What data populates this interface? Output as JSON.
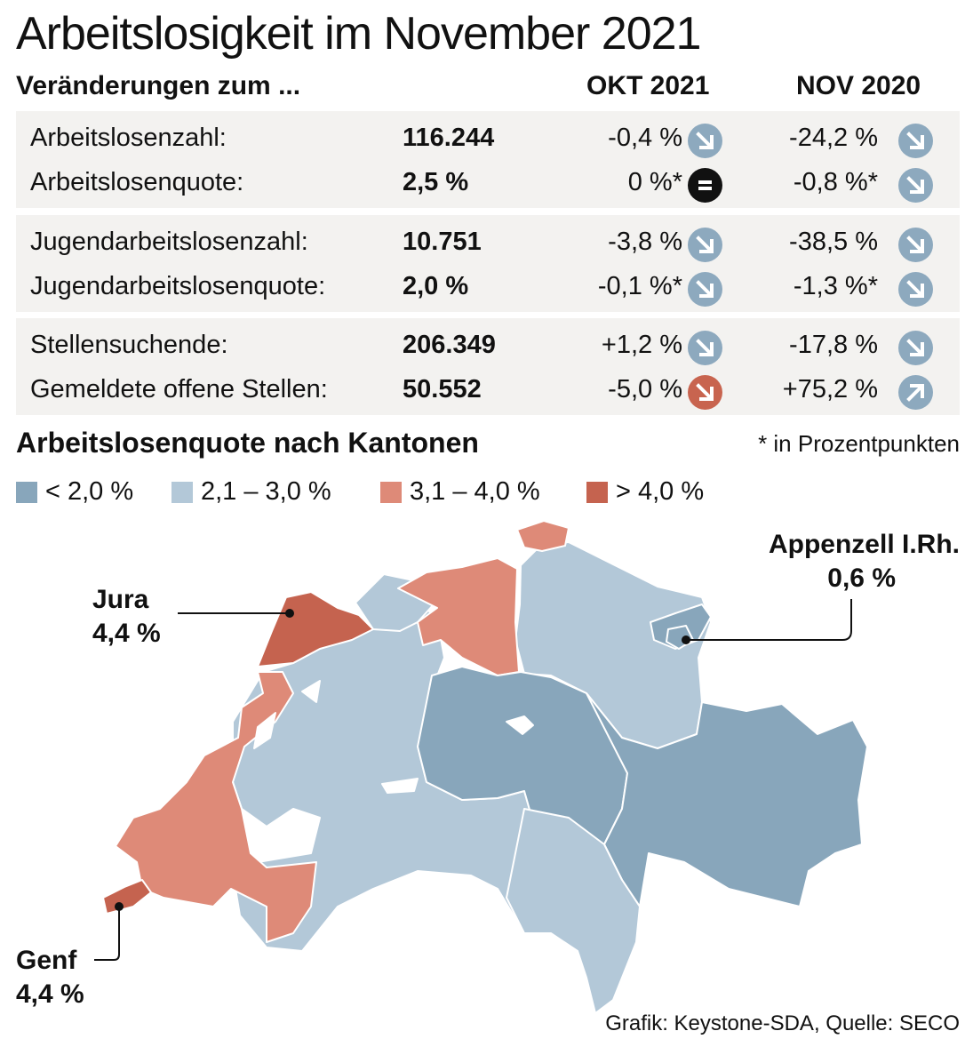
{
  "title": "Arbeitslosigkeit im November 2021",
  "table": {
    "caption": "Veränderungen zum ...",
    "col1_header": "OKT 2021",
    "col2_header": "NOV 2020",
    "groups": [
      {
        "rows": [
          {
            "label": "Arbeitslosenzahl:",
            "value": "116.244",
            "okt": "-0,4 %",
            "okt_icon": "arrow-down-right-icon",
            "okt_color": "#8da9be",
            "nov": "-24,2 %",
            "nov_icon": "arrow-down-right-icon",
            "nov_color": "#8da9be"
          },
          {
            "label": "Arbeitslosenquote:",
            "value": "2,5 %",
            "okt": "0 %*",
            "okt_icon": "equals-icon",
            "okt_color": "#111111",
            "nov": "-0,8 %*",
            "nov_icon": "arrow-down-right-icon",
            "nov_color": "#8da9be"
          }
        ]
      },
      {
        "rows": [
          {
            "label": "Jugendarbeitslosenzahl:",
            "value": "10.751",
            "okt": "-3,8 %",
            "okt_icon": "arrow-down-right-icon",
            "okt_color": "#8da9be",
            "nov": "-38,5 %",
            "nov_icon": "arrow-down-right-icon",
            "nov_color": "#8da9be"
          },
          {
            "label": "Jugendarbeitslosenquote:",
            "value": "2,0 %",
            "okt": "-0,1 %*",
            "okt_icon": "arrow-down-right-icon",
            "okt_color": "#8da9be",
            "nov": "-1,3 %*",
            "nov_icon": "arrow-down-right-icon",
            "nov_color": "#8da9be"
          }
        ]
      },
      {
        "rows": [
          {
            "label": "Stellensuchende:",
            "value": "206.349",
            "okt": "+1,2 %",
            "okt_icon": "arrow-down-right-icon",
            "okt_color": "#8da9be",
            "nov": "-17,8 %",
            "nov_icon": "arrow-down-right-icon",
            "nov_color": "#8da9be"
          },
          {
            "label": "Gemeldete offene Stellen:",
            "value": "50.552",
            "okt": "-5,0 %",
            "okt_icon": "arrow-down-right-icon",
            "okt_color": "#c8644f",
            "nov": "+75,2 %",
            "nov_icon": "arrow-up-right-icon",
            "nov_color": "#8da9be"
          }
        ]
      }
    ]
  },
  "map_section": {
    "title": "Arbeitslosenquote nach Kantonen",
    "footnote": "* in Prozentpunkten",
    "legend": [
      {
        "label": "< 2,0 %",
        "color": "#88a6bb"
      },
      {
        "label": "2,1 – 3,0 %",
        "color": "#b3c8d8"
      },
      {
        "label": "3,1 – 4,0 %",
        "color": "#de8a78"
      },
      {
        "label": "> 4,0 %",
        "color": "#c5634f"
      }
    ],
    "callouts": {
      "jura": {
        "name": "Jura",
        "value": "4,4 %"
      },
      "genf": {
        "name": "Genf",
        "value": "4,4 %"
      },
      "appenzell": {
        "name": "Appenzell I.Rh.",
        "value": "0,6 %"
      }
    }
  },
  "source": "Grafik: Keystone-SDA, Quelle: SECO"
}
